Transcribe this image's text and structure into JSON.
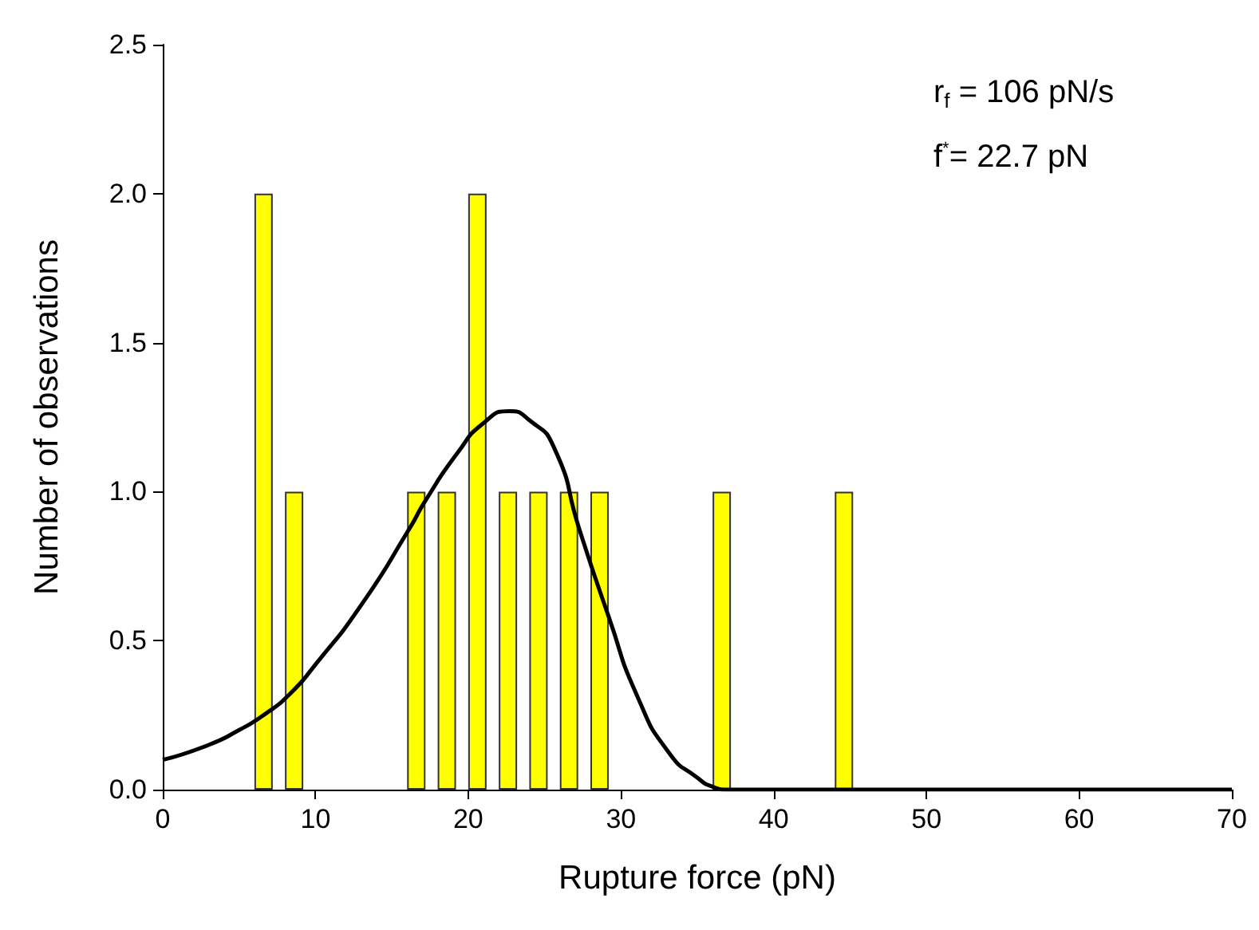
{
  "chart_data": {
    "type": "bar",
    "xlabel": "Rupture force (pN)",
    "ylabel": "Number of observations",
    "xlim": [
      0,
      70
    ],
    "xticks": [
      0,
      10,
      20,
      30,
      40,
      50,
      60,
      70
    ],
    "ylim": [
      0,
      2.5
    ],
    "yticks": [
      {
        "value": 0,
        "label": "0.0"
      },
      {
        "value": 0.5,
        "label": "0.5"
      },
      {
        "value": 1,
        "label": "1.0"
      },
      {
        "value": 1.5,
        "label": "1.5"
      },
      {
        "value": 2,
        "label": "2.0"
      },
      {
        "value": 2.5,
        "label": "2.5"
      }
    ],
    "grid": false,
    "annotations": [
      "r$_{f}$ = 106 pN/s",
      "f$^{*}$= 22.7 pN"
    ],
    "series": [
      {
        "color": "#ffff00",
        "x": [
          6.6,
          8.6,
          16.6,
          18.6,
          20.6,
          22.6,
          24.6,
          26.6,
          28.6,
          36.6,
          44.6
        ],
        "values": [
          2,
          1,
          1,
          1,
          2,
          1,
          1,
          1,
          1,
          1,
          1
        ]
      },
      {
        "type": "line",
        "color": "#000000",
        "marker": "none",
        "x": [
          0,
          3,
          5,
          6.6,
          8.3,
          10,
          13,
          16.2,
          17.2,
          19.3,
          21,
          22.7,
          24,
          25.6,
          27.3,
          29.2,
          31.1,
          33.2,
          35,
          36,
          37,
          40,
          50,
          60,
          70
        ],
        "values": [
          0.1,
          0.15,
          0.2,
          0.25,
          0.32,
          0.42,
          0.62,
          0.88,
          0.97,
          1.13,
          1.23,
          1.27,
          1.24,
          1.15,
          0.87,
          0.58,
          0.31,
          0.12,
          0.04,
          0.01,
          0,
          0,
          0,
          0,
          0
        ]
      }
    ]
  }
}
